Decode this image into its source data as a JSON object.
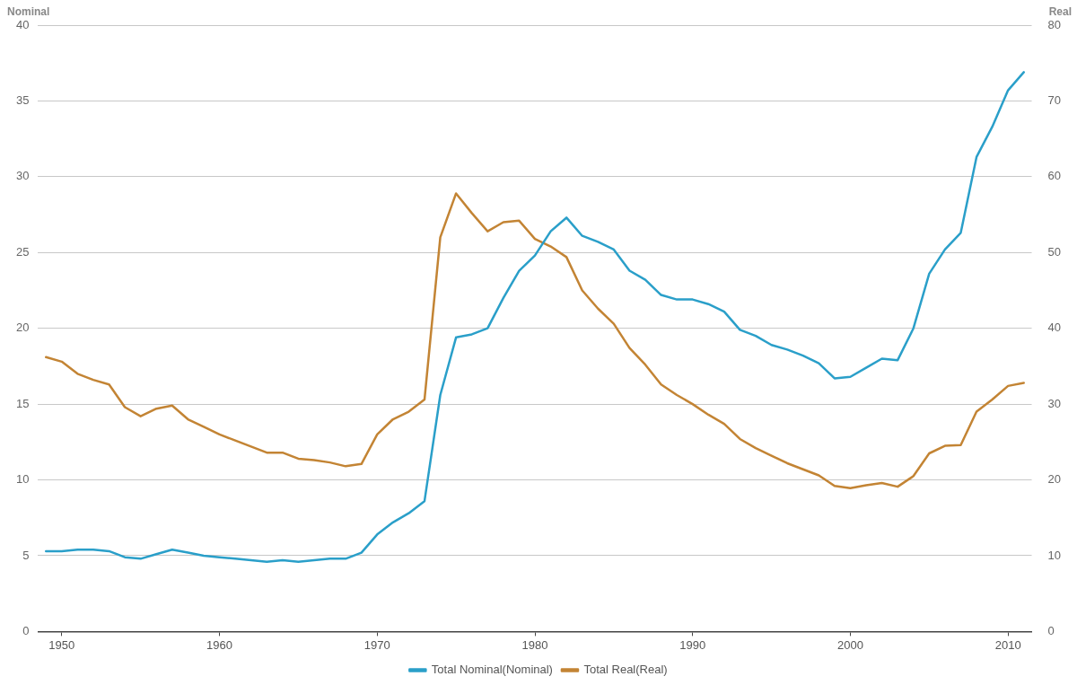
{
  "chart_data": {
    "type": "line",
    "ylabel": "Nominal",
    "y2label": "Real",
    "x": [
      1949,
      1950,
      1951,
      1952,
      1953,
      1954,
      1955,
      1956,
      1957,
      1958,
      1959,
      1960,
      1961,
      1962,
      1963,
      1964,
      1965,
      1966,
      1967,
      1968,
      1969,
      1970,
      1971,
      1972,
      1973,
      1974,
      1975,
      1976,
      1977,
      1978,
      1979,
      1980,
      1981,
      1982,
      1983,
      1984,
      1985,
      1986,
      1987,
      1988,
      1989,
      1990,
      1991,
      1992,
      1993,
      1994,
      1995,
      1996,
      1997,
      1998,
      1999,
      2000,
      2001,
      2002,
      2003,
      2004,
      2005,
      2006,
      2007,
      2008,
      2009,
      2010,
      2011
    ],
    "series": [
      {
        "name": "Total Nominal(Nominal)",
        "color": "#2a9fc9",
        "values": [
          5.3,
          5.3,
          5.4,
          5.4,
          5.3,
          4.9,
          4.8,
          5.1,
          5.4,
          5.2,
          5.0,
          4.9,
          4.8,
          4.7,
          4.6,
          4.7,
          4.6,
          4.7,
          4.8,
          4.8,
          5.2,
          6.4,
          7.2,
          7.8,
          8.6,
          15.6,
          19.4,
          19.6,
          20.0,
          22.0,
          23.8,
          24.8,
          26.4,
          27.3,
          26.1,
          25.7,
          25.2,
          23.8,
          23.2,
          22.2,
          21.9,
          21.9,
          21.6,
          21.1,
          19.9,
          19.5,
          18.9,
          18.6,
          18.2,
          17.7,
          16.7,
          16.8,
          17.4,
          18.0,
          17.9,
          20.0,
          23.6,
          25.2,
          26.3,
          31.3,
          33.3,
          35.7,
          36.9
        ]
      },
      {
        "name": "Total Real(Real)",
        "color": "#c38434",
        "axis": "y2",
        "values": [
          36.2,
          35.6,
          34.0,
          33.2,
          32.6,
          29.6,
          28.4,
          29.4,
          29.8,
          28.0,
          27.0,
          26.0,
          25.2,
          24.4,
          23.6,
          23.6,
          22.8,
          22.6,
          22.3,
          21.8,
          22.1,
          26.0,
          28.0,
          29.0,
          30.6,
          52.0,
          57.8,
          55.2,
          52.8,
          54.0,
          54.2,
          51.8,
          50.8,
          49.4,
          45.0,
          42.6,
          40.6,
          37.4,
          35.2,
          32.6,
          31.2,
          30.0,
          28.6,
          27.4,
          25.4,
          24.2,
          23.2,
          22.2,
          21.4,
          20.6,
          19.2,
          18.9,
          19.3,
          19.6,
          19.1,
          20.5,
          23.5,
          24.5,
          24.6,
          29.0,
          30.6,
          32.4,
          32.8
        ]
      }
    ],
    "xlim": [
      1948.5,
      2011.5
    ],
    "xticks": [
      1950,
      1960,
      1970,
      1980,
      1990,
      2000,
      2010
    ],
    "ylim": [
      0,
      40
    ],
    "yticks": [
      0,
      5,
      10,
      15,
      20,
      25,
      30,
      35,
      40
    ],
    "y2lim": [
      0,
      80
    ],
    "y2ticks": [
      0,
      10,
      20,
      30,
      40,
      50,
      60,
      70,
      80
    ],
    "grid": "y",
    "legend": "bottom",
    "marker": "none",
    "line_style": "solid"
  }
}
